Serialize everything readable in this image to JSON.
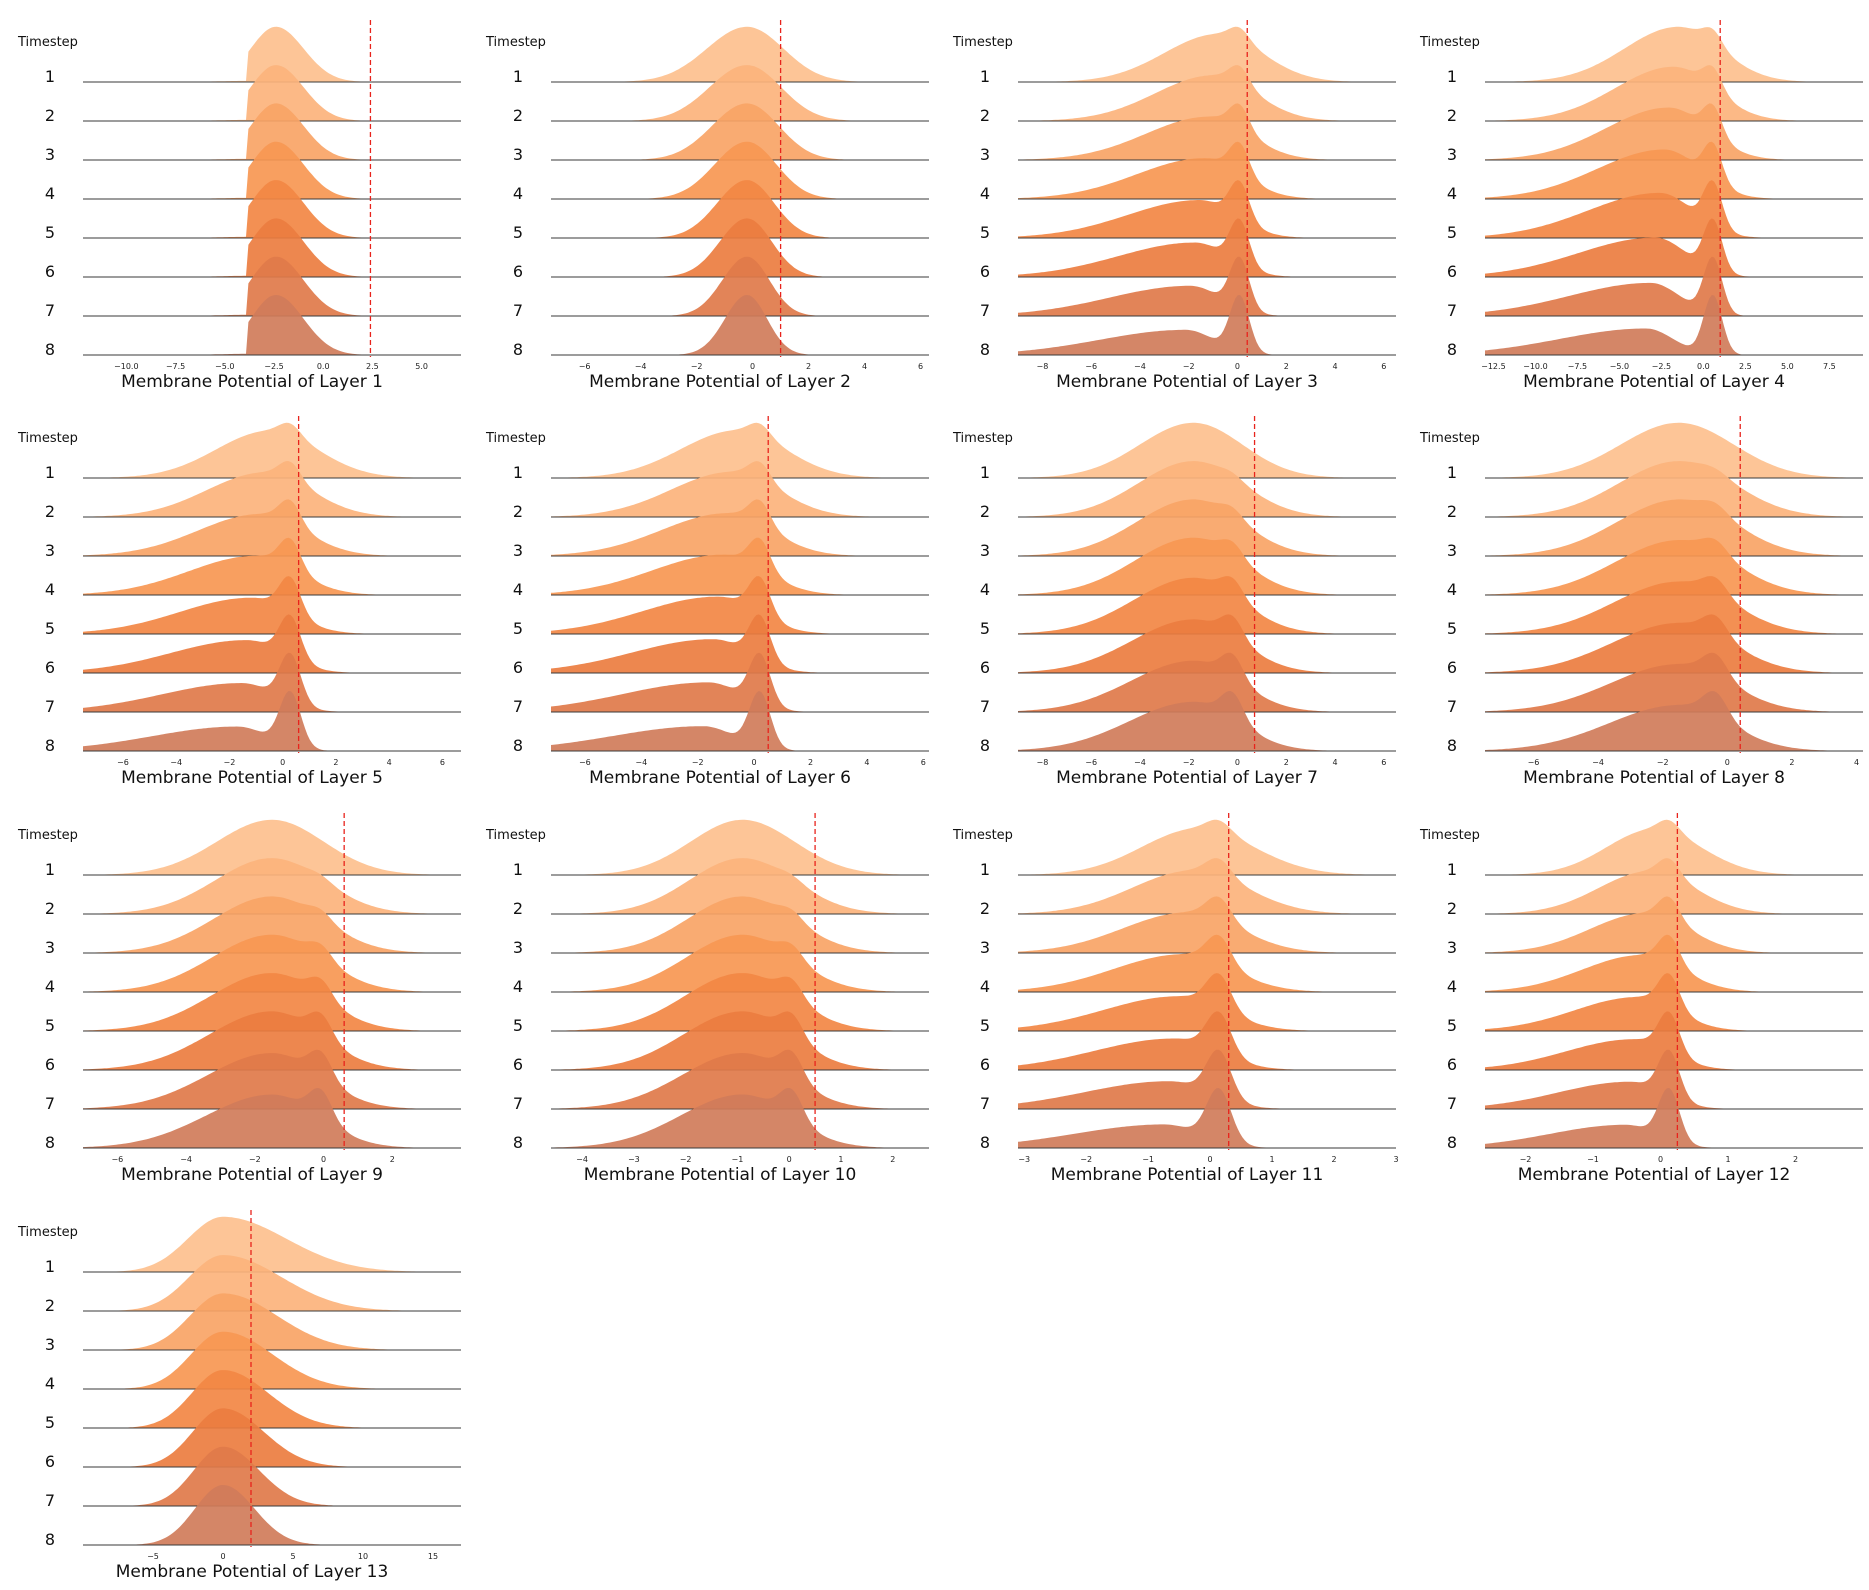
{
  "figure": {
    "timesteps": [
      "1",
      "2",
      "3",
      "4",
      "5",
      "6",
      "7",
      "8"
    ],
    "timestep_header": "Timestep",
    "colors": {
      "ridge_fills": [
        "#fdc08e",
        "#fcb37c",
        "#f9a466",
        "#f79752",
        "#f28744",
        "#ec7d40",
        "#e07a4a",
        "#d07c5a"
      ],
      "threshold_line": "#e8231c",
      "baseline": "#3a3a3a"
    }
  },
  "chart_data": [
    {
      "type": "ridgeline",
      "title": "Membrane Potential of Layer 1",
      "xlabel": "Membrane Potential of Layer 1",
      "xlim": [
        -12.2,
        7.0
      ],
      "ticks": [
        -10.0,
        -7.5,
        -5.0,
        -2.5,
        0.0,
        2.5,
        5.0
      ],
      "tick_labels": [
        "−10.0",
        "−7.5",
        "−5.0",
        "−2.5",
        "0.0",
        "2.5",
        "5.0"
      ],
      "threshold": 2.4,
      "peak": -2.4,
      "spread_left": 1.6,
      "spread_right": 1.4,
      "style": "sharp-left"
    },
    {
      "type": "ridgeline",
      "title": "Membrane Potential of Layer 2",
      "xlabel": "Membrane Potential of Layer 2",
      "xlim": [
        -7.2,
        6.3
      ],
      "ticks": [
        -6,
        -4,
        -2,
        0,
        2,
        4,
        6
      ],
      "tick_labels": [
        "−6",
        "−4",
        "−2",
        "0",
        "2",
        "4",
        "6"
      ],
      "threshold": 1.0,
      "peak": -0.2,
      "spread_left": 1.3,
      "spread_right": 1.3,
      "style": "narrowing"
    },
    {
      "type": "ridgeline",
      "title": "Membrane Potential of Layer 3",
      "xlabel": "Membrane Potential of Layer 3",
      "xlim": [
        -9.0,
        6.5
      ],
      "ticks": [
        -8,
        -6,
        -4,
        -2,
        0,
        2,
        4,
        6
      ],
      "tick_labels": [
        "−8",
        "−6",
        "−4",
        "−2",
        "0",
        "2",
        "4",
        "6"
      ],
      "threshold": 0.4,
      "peak": -0.8,
      "spread_left": 2.2,
      "spread_right": 1.8,
      "style": "skew-left-spike"
    },
    {
      "type": "ridgeline",
      "title": "Membrane Potential of Layer 4",
      "xlabel": "Membrane Potential of Layer 4",
      "xlim": [
        -13.0,
        9.5
      ],
      "ticks": [
        -12.5,
        -10.0,
        -7.5,
        -5.0,
        -2.5,
        0.0,
        2.5,
        5.0,
        7.5
      ],
      "tick_labels": [
        "−12.5",
        "−10.0",
        "−7.5",
        "−5.0",
        "−2.5",
        "0.0",
        "2.5",
        "5.0",
        "7.5"
      ],
      "threshold": 1.0,
      "peak": -1.5,
      "spread_left": 3.2,
      "spread_right": 2.5,
      "style": "skew-left-spike"
    },
    {
      "type": "ridgeline",
      "title": "Membrane Potential of Layer 5",
      "xlabel": "Membrane Potential of Layer 5",
      "xlim": [
        -7.5,
        6.7
      ],
      "ticks": [
        -6,
        -4,
        -2,
        0,
        2,
        4,
        6
      ],
      "tick_labels": [
        "−6",
        "−4",
        "−2",
        "0",
        "2",
        "4",
        "6"
      ],
      "threshold": 0.6,
      "peak": -0.5,
      "spread_left": 2.0,
      "spread_right": 1.8,
      "style": "skew-left-spike"
    },
    {
      "type": "ridgeline",
      "title": "Membrane Potential of Layer 6",
      "xlabel": "Membrane Potential of Layer 6",
      "xlim": [
        -7.2,
        6.2
      ],
      "ticks": [
        -6,
        -4,
        -2,
        0,
        2,
        4,
        6
      ],
      "tick_labels": [
        "−6",
        "−4",
        "−2",
        "0",
        "2",
        "4",
        "6"
      ],
      "threshold": 0.5,
      "peak": -0.6,
      "spread_left": 2.0,
      "spread_right": 1.7,
      "style": "skew-left-spike"
    },
    {
      "type": "ridgeline",
      "title": "Membrane Potential of Layer 7",
      "xlabel": "Membrane Potential of Layer 7",
      "xlim": [
        -9.0,
        6.5
      ],
      "ticks": [
        -8,
        -6,
        -4,
        -2,
        0,
        2,
        4,
        6
      ],
      "tick_labels": [
        "−8",
        "−6",
        "−4",
        "−2",
        "0",
        "2",
        "4",
        "6"
      ],
      "threshold": 0.7,
      "peak": -1.8,
      "spread_left": 2.2,
      "spread_right": 2.0,
      "style": "bimodal"
    },
    {
      "type": "ridgeline",
      "title": "Membrane Potential of Layer 8",
      "xlabel": "Membrane Potential of Layer 8",
      "xlim": [
        -7.5,
        4.2
      ],
      "ticks": [
        -6,
        -4,
        -2,
        0,
        2,
        4
      ],
      "tick_labels": [
        "−6",
        "−4",
        "−2",
        "0",
        "2",
        "4"
      ],
      "threshold": 0.4,
      "peak": -1.5,
      "spread_left": 1.8,
      "spread_right": 1.7,
      "style": "bimodal"
    },
    {
      "type": "ridgeline",
      "title": "Membrane Potential of Layer 9",
      "xlabel": "Membrane Potential of Layer 9",
      "xlim": [
        -7.0,
        4.0
      ],
      "ticks": [
        -6,
        -4,
        -2,
        0,
        2
      ],
      "tick_labels": [
        "−6",
        "−4",
        "−2",
        "0",
        "2"
      ],
      "threshold": 0.6,
      "peak": -1.5,
      "spread_left": 1.6,
      "spread_right": 1.5,
      "style": "bimodal"
    },
    {
      "type": "ridgeline",
      "title": "Membrane Potential of Layer 10",
      "xlabel": "Membrane Potential of Layer 10",
      "xlim": [
        -4.6,
        2.7
      ],
      "ticks": [
        -4,
        -3,
        -2,
        -1,
        0,
        1,
        2
      ],
      "tick_labels": [
        "−4",
        "−3",
        "−2",
        "−1",
        "0",
        "1",
        "2"
      ],
      "threshold": 0.5,
      "peak": -0.9,
      "spread_left": 1.0,
      "spread_right": 1.0,
      "style": "bimodal"
    },
    {
      "type": "ridgeline",
      "title": "Membrane Potential of Layer 11",
      "xlabel": "Membrane Potential of Layer 11",
      "xlim": [
        -3.1,
        3.0
      ],
      "ticks": [
        -3,
        -2,
        -1,
        0,
        1,
        2,
        3
      ],
      "tick_labels": [
        "−3",
        "−2",
        "−1",
        "0",
        "1",
        "2",
        "3"
      ],
      "threshold": 0.3,
      "peak": -0.2,
      "spread_left": 0.9,
      "spread_right": 0.9,
      "style": "skew-left-spike"
    },
    {
      "type": "ridgeline",
      "title": "Membrane Potential of Layer 12",
      "xlabel": "Membrane Potential of Layer 12",
      "xlim": [
        -2.6,
        3.0
      ],
      "ticks": [
        -2,
        -1,
        0,
        1,
        2
      ],
      "tick_labels": [
        "−2",
        "−1",
        "0",
        "1",
        "2"
      ],
      "threshold": 0.25,
      "peak": -0.1,
      "spread_left": 0.7,
      "spread_right": 0.7,
      "style": "skew-left-spike"
    },
    {
      "type": "ridgeline",
      "title": "Membrane Potential of Layer 13",
      "xlabel": "Membrane Potential of Layer 13",
      "xlim": [
        -10.0,
        17.0
      ],
      "ticks": [
        -5,
        0,
        5,
        10,
        15
      ],
      "tick_labels": [
        "−5",
        "0",
        "5",
        "10",
        "15"
      ],
      "threshold": 2.0,
      "peak": 0.0,
      "spread_left": 2.5,
      "spread_right": 4.5,
      "style": "skew-right"
    }
  ]
}
